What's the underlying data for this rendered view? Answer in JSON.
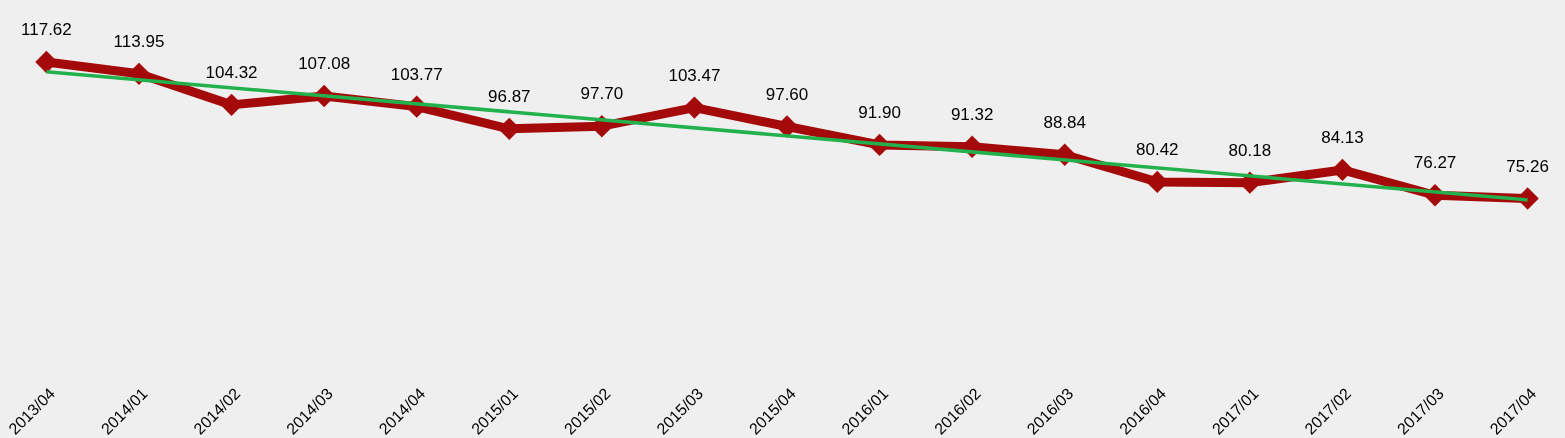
{
  "chart_data": {
    "type": "line",
    "categories": [
      "2013/04",
      "2014/01",
      "2014/02",
      "2014/03",
      "2014/04",
      "2015/01",
      "2015/02",
      "2015/03",
      "2015/04",
      "2016/01",
      "2016/02",
      "2016/03",
      "2016/04",
      "2017/01",
      "2017/02",
      "2017/03",
      "2017/04"
    ],
    "series": [
      {
        "color": "#a50a0a",
        "marker": "diamond",
        "value_labels": [
          "117.62",
          "113.95",
          "104.32",
          "107.08",
          "103.77",
          "96.87",
          "97.70",
          "103.47",
          "97.60",
          "91.90",
          "91.32",
          "88.84",
          "80.42",
          "80.18",
          "84.13",
          "76.27",
          "75.26"
        ],
        "values": [
          117.62,
          113.95,
          104.32,
          107.08,
          103.77,
          96.87,
          97.7,
          103.47,
          97.6,
          91.9,
          91.32,
          88.84,
          80.42,
          80.18,
          84.13,
          76.27,
          75.26
        ]
      },
      {
        "color": "#22b14c",
        "marker": "none",
        "x": [
          "2013/04",
          "2017/04"
        ],
        "values": [
          114.6,
          74.8
        ]
      }
    ],
    "tick_labels": "x"
  }
}
